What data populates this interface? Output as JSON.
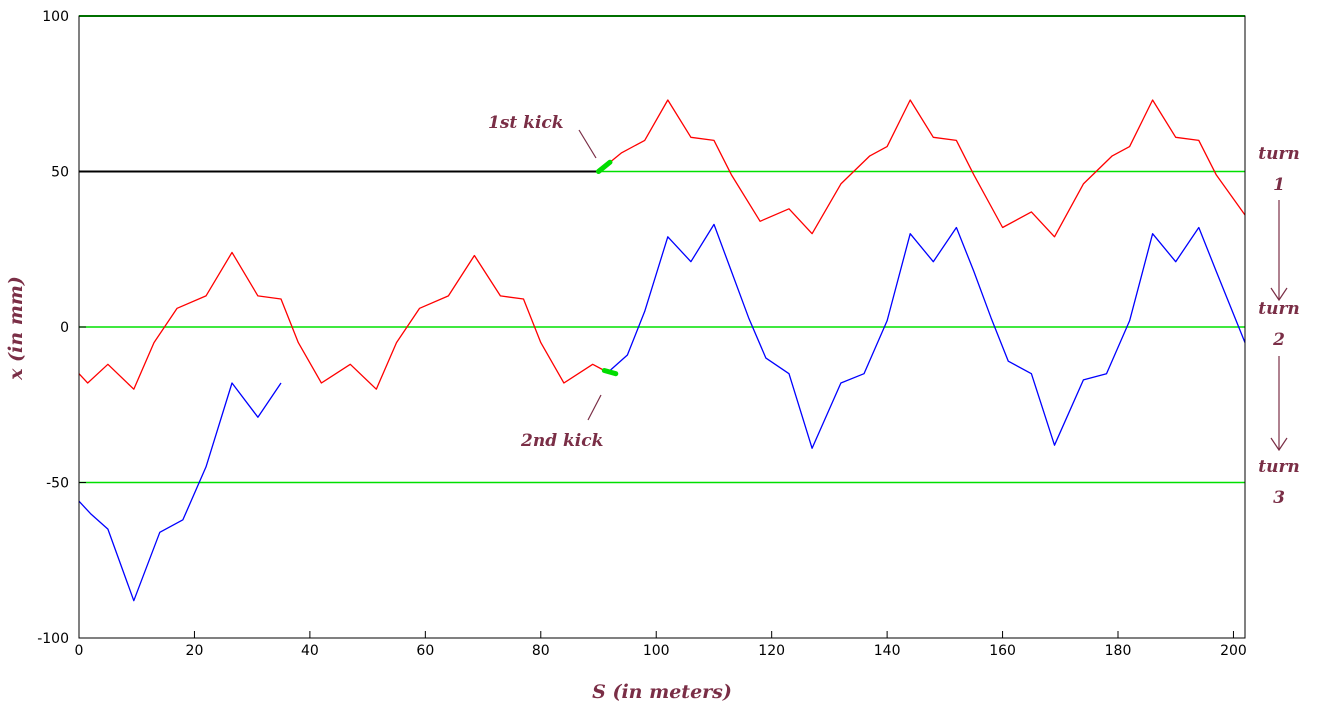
{
  "chart_data": {
    "type": "line",
    "xlabel": "S (in meters)",
    "ylabel": "x (in mm)",
    "xlim": [
      0,
      202
    ],
    "ylim": [
      -100,
      100
    ],
    "x_ticks": [
      0,
      20,
      40,
      60,
      80,
      100,
      120,
      140,
      160,
      180,
      200
    ],
    "y_ticks": [
      100,
      50,
      0,
      -50,
      -100
    ],
    "grid_lines_y": [
      100,
      50,
      0,
      -50
    ],
    "colors": {
      "red_trace": "#ff0000",
      "blue_trace": "#0000ff",
      "guide_lines": "#00e000",
      "kick": "#00dd00",
      "annotation": "#7a2e46",
      "frame": "#000000"
    },
    "series": [
      {
        "points": [
          [
            0,
            -15
          ],
          [
            1.5,
            -18
          ],
          [
            5,
            -12
          ],
          [
            9.5,
            -20
          ],
          [
            13,
            -5
          ],
          [
            17,
            6
          ],
          [
            22,
            10
          ],
          [
            26.5,
            24
          ],
          [
            31,
            10
          ],
          [
            35,
            9
          ],
          [
            38,
            -5
          ],
          [
            42,
            -18
          ],
          [
            47,
            -12
          ],
          [
            51.5,
            -20
          ],
          [
            55,
            -5
          ],
          [
            59,
            6
          ],
          [
            64,
            10
          ],
          [
            68.5,
            23
          ],
          [
            73,
            10
          ],
          [
            77,
            9
          ],
          [
            80,
            -5
          ],
          [
            84,
            -18
          ],
          [
            89,
            -12
          ],
          [
            91,
            -14
          ],
          [
            92,
            -14
          ]
        ]
      },
      {
        "points": [
          [
            0,
            -56
          ],
          [
            2,
            -60
          ],
          [
            5,
            -65
          ],
          [
            9.5,
            -88
          ],
          [
            14,
            -66
          ],
          [
            18,
            -62
          ],
          [
            22,
            -45
          ],
          [
            26.5,
            -18
          ],
          [
            31,
            -29
          ],
          [
            35,
            -18
          ]
        ]
      },
      {
        "points": [
          [
            90.5,
            50
          ],
          [
            92,
            53
          ],
          [
            94,
            56
          ],
          [
            98,
            60
          ],
          [
            102,
            73
          ],
          [
            106,
            61
          ],
          [
            110,
            60
          ],
          [
            113,
            49
          ],
          [
            118,
            34
          ],
          [
            123,
            38
          ],
          [
            127,
            30
          ],
          [
            132,
            46
          ],
          [
            137,
            55
          ],
          [
            140,
            58
          ],
          [
            144,
            73
          ],
          [
            148,
            61
          ],
          [
            152,
            60
          ],
          [
            155,
            49
          ],
          [
            160,
            32
          ],
          [
            165,
            37
          ],
          [
            169,
            29
          ],
          [
            174,
            46
          ],
          [
            179,
            55
          ],
          [
            182,
            58
          ],
          [
            186,
            73
          ],
          [
            190,
            61
          ],
          [
            194,
            60
          ],
          [
            197,
            49
          ],
          [
            202,
            36
          ]
        ]
      },
      {
        "points": [
          [
            92,
            -14
          ],
          [
            95,
            -9
          ],
          [
            98,
            5
          ],
          [
            102,
            29
          ],
          [
            106,
            21
          ],
          [
            110,
            33
          ],
          [
            113,
            18
          ],
          [
            116,
            3
          ],
          [
            119,
            -10
          ],
          [
            123,
            -15
          ],
          [
            127,
            -39
          ],
          [
            132,
            -18
          ],
          [
            136,
            -15
          ],
          [
            140,
            2
          ],
          [
            144,
            30
          ],
          [
            148,
            21
          ],
          [
            152,
            32
          ],
          [
            155,
            18
          ],
          [
            158,
            3
          ],
          [
            161,
            -11
          ],
          [
            165,
            -15
          ],
          [
            169,
            -38
          ],
          [
            174,
            -17
          ],
          [
            178,
            -15
          ],
          [
            182,
            2
          ],
          [
            186,
            30
          ],
          [
            190,
            21
          ],
          [
            194,
            32
          ],
          [
            197,
            18
          ],
          [
            202,
            -5
          ]
        ]
      }
    ],
    "flat_line": {
      "points": [
        [
          0,
          50
        ],
        [
          90,
          50
        ]
      ]
    },
    "kicks": [
      {
        "points": [
          [
            90,
            50
          ],
          [
            92,
            53
          ]
        ]
      },
      {
        "points": [
          [
            91,
            -14
          ],
          [
            93,
            -15
          ]
        ]
      }
    ],
    "annotations": {
      "first_kick": "1st kick",
      "second_kick": "2nd kick",
      "turn1_word": "turn",
      "turn1_num": "1",
      "turn2_word": "turn",
      "turn2_num": "2",
      "turn3_word": "turn",
      "turn3_num": "3"
    }
  }
}
